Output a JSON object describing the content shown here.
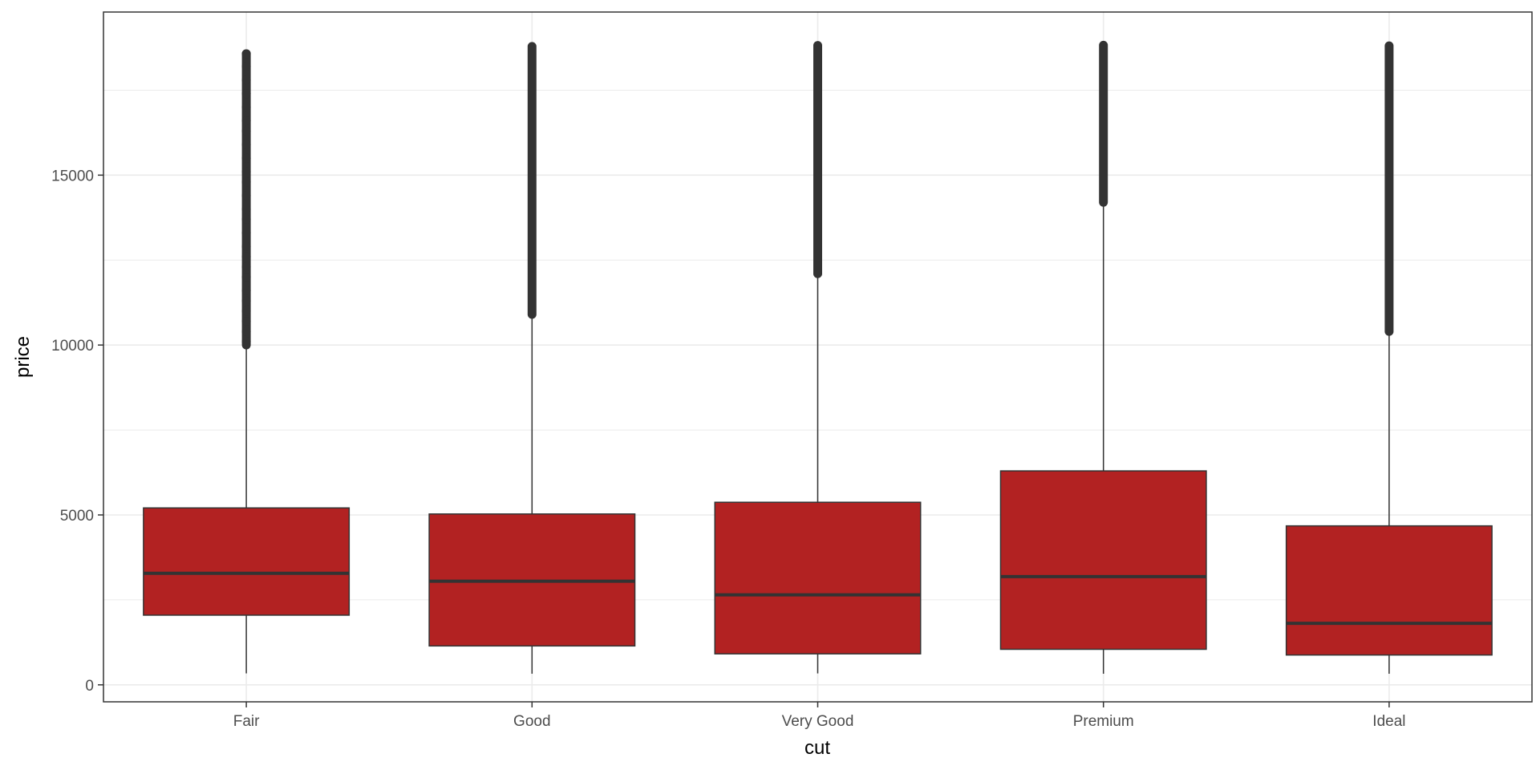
{
  "chart_data": {
    "type": "boxplot",
    "xlabel": "cut",
    "ylabel": "price",
    "categories": [
      "Fair",
      "Good",
      "Very Good",
      "Premium",
      "Ideal"
    ],
    "ylim": [
      -500,
      19800
    ],
    "yticks": [
      0,
      5000,
      10000,
      15000
    ],
    "yticks_minor": [
      2500,
      7500,
      12500,
      17500
    ],
    "grid": true,
    "colors": {
      "box_fill": "#b22222",
      "box_stroke": "#333333",
      "grid": "#ebebeb",
      "panel_border": "#333333"
    },
    "boxes": [
      {
        "category": "Fair",
        "min": 337,
        "q1": 2050,
        "median": 3282,
        "q3": 5206,
        "whisker_high": 9900,
        "outlier_min": 10000,
        "outlier_max": 18574,
        "outliers": [
          10100,
          10400,
          10700,
          11000,
          11300,
          11600,
          12000,
          12300,
          12600,
          12900,
          13300,
          13700,
          14000,
          14400,
          14800,
          15100,
          15500,
          15900,
          16300,
          16600,
          17000,
          17400,
          17800,
          18200,
          18574
        ]
      },
      {
        "category": "Good",
        "min": 327,
        "q1": 1145,
        "median": 3050,
        "q3": 5028,
        "whisker_high": 10800,
        "outlier_min": 10900,
        "outlier_max": 18788,
        "outliers": []
      },
      {
        "category": "Very Good",
        "min": 336,
        "q1": 912,
        "median": 2648,
        "q3": 5373,
        "whisker_high": 12000,
        "outlier_min": 12100,
        "outlier_max": 18818,
        "outliers": []
      },
      {
        "category": "Premium",
        "min": 326,
        "q1": 1046,
        "median": 3185,
        "q3": 6296,
        "whisker_high": 14200,
        "outlier_min": 14200,
        "outlier_max": 18823,
        "outliers": []
      },
      {
        "category": "Ideal",
        "min": 326,
        "q1": 878,
        "median": 1810,
        "q3": 4678,
        "whisker_high": 10300,
        "outlier_min": 10400,
        "outlier_max": 18806,
        "outliers": []
      }
    ]
  }
}
